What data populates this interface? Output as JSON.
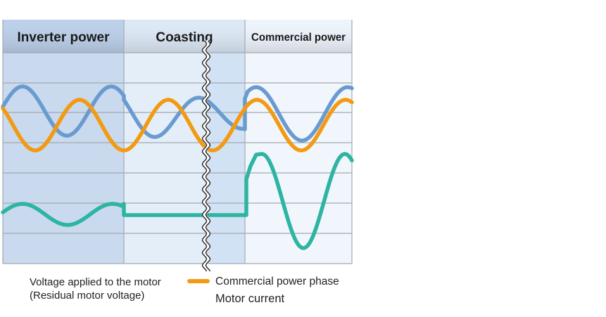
{
  "headers": {
    "inverter": "Inverter power",
    "coasting": "Coasting",
    "commercial": "Commercial power"
  },
  "legend": {
    "voltage_line1": "Voltage applied to the motor",
    "voltage_line2": "(Residual motor voltage)",
    "phase": "Commercial power phase",
    "current": "Motor current"
  },
  "colors": {
    "voltage": "#6a9bd0",
    "phase": "#f39a13",
    "current": "#2db5a2",
    "inverter_bg": "#c9d9ee",
    "coasting_bg": "#e4eef9",
    "commercial_bg": "#f1f6fd",
    "grid": "#a3a9b1"
  }
}
